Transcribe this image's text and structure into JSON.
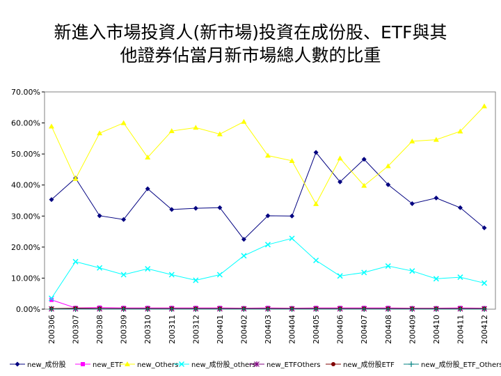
{
  "title_line1": "新進入市場投資人(新市場)投資在成份股、ETF與其",
  "title_line2": "他證券佔當月新市場總人數的比重",
  "chart_data": {
    "type": "line",
    "title": "新進入市場投資人(新市場)投資在成份股、ETF與其他證券佔當月新市場總人數的比重",
    "xlabel": "",
    "ylabel": "",
    "ylim": [
      0,
      70
    ],
    "y_ticks": [
      {
        "value": 0,
        "label": "0.00%"
      },
      {
        "value": 10,
        "label": "10.00%"
      },
      {
        "value": 20,
        "label": "20.00%"
      },
      {
        "value": 30,
        "label": "30.00%"
      },
      {
        "value": 40,
        "label": "40.00%"
      },
      {
        "value": 50,
        "label": "50.00%"
      },
      {
        "value": 60,
        "label": "60.00%"
      },
      {
        "value": 70,
        "label": "70.00%"
      }
    ],
    "categories": [
      "200306",
      "200307",
      "200308",
      "200309",
      "200310",
      "200311",
      "200312",
      "200401",
      "200402",
      "200403",
      "200404",
      "200405",
      "200406",
      "200407",
      "200408",
      "200409",
      "200410",
      "200411",
      "200412"
    ],
    "legend_position": "bottom",
    "series": [
      {
        "name": "new_成份股",
        "color": "#000080",
        "marker": "diamond",
        "values": [
          35.3,
          42.2,
          30.1,
          28.9,
          38.8,
          32.1,
          32.5,
          32.7,
          22.5,
          30.1,
          30.0,
          50.5,
          41.0,
          48.3,
          40.1,
          34.0,
          35.8,
          32.7,
          26.2
        ]
      },
      {
        "name": "new_ETF",
        "color": "#ff00ff",
        "marker": "square",
        "values": [
          3.0,
          0.4,
          0.5,
          0.4,
          0.4,
          0.4,
          0.4,
          0.4,
          0.3,
          0.4,
          0.3,
          0.4,
          0.4,
          0.4,
          0.4,
          0.3,
          0.3,
          0.4,
          0.3
        ]
      },
      {
        "name": "new_Others",
        "color": "#ffff00",
        "marker": "triangle",
        "values": [
          58.9,
          42.0,
          56.7,
          60.0,
          48.9,
          57.4,
          58.5,
          56.4,
          60.4,
          49.5,
          47.8,
          33.9,
          48.6,
          39.8,
          46.1,
          54.1,
          54.6,
          57.3,
          65.4
        ]
      },
      {
        "name": "new_成份股_others",
        "color": "#00ffff",
        "marker": "x",
        "values": [
          3.5,
          15.3,
          13.3,
          11.1,
          13.0,
          11.1,
          9.3,
          11.1,
          17.2,
          20.8,
          22.8,
          15.7,
          10.7,
          11.8,
          13.9,
          12.3,
          9.8,
          10.3,
          8.4
        ]
      },
      {
        "name": "new_ETFOthers",
        "color": "#800080",
        "marker": "star",
        "values": [
          0.1,
          0.1,
          0.1,
          0.1,
          0.1,
          0.1,
          0.1,
          0.1,
          0.1,
          0.1,
          0.1,
          0.1,
          0.1,
          0.1,
          0.1,
          0.1,
          0.1,
          0.1,
          0.1
        ]
      },
      {
        "name": "new_成份股ETF",
        "color": "#800000",
        "marker": "circle",
        "values": [
          0.2,
          0.3,
          0.2,
          0.2,
          0.2,
          0.2,
          0.2,
          0.2,
          0.2,
          0.2,
          0.2,
          0.2,
          0.2,
          0.2,
          0.2,
          0.2,
          0.2,
          0.2,
          0.2
        ]
      },
      {
        "name": "new_成份股_ETF_Others",
        "color": "#008080",
        "marker": "plus",
        "values": [
          0.05,
          0.05,
          0.05,
          0.05,
          0.05,
          0.05,
          0.05,
          0.05,
          0.05,
          0.05,
          0.05,
          0.05,
          0.05,
          0.05,
          0.05,
          0.05,
          0.05,
          0.05,
          0.05
        ]
      }
    ]
  }
}
